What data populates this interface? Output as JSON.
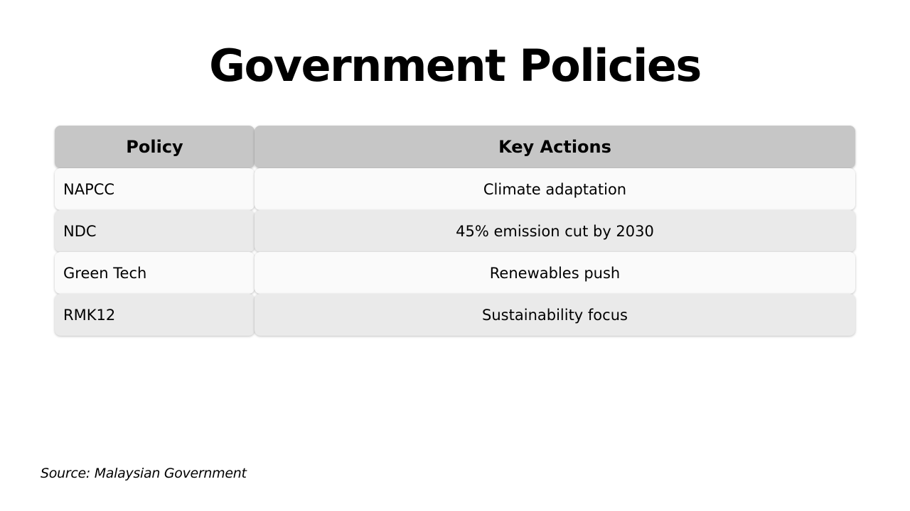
{
  "title": "Government Policies",
  "table": {
    "headers": [
      "Policy",
      "Key Actions"
    ],
    "rows": [
      [
        "NAPCC",
        "Climate adaptation"
      ],
      [
        "NDC",
        "45% emission cut by 2030"
      ],
      [
        "Green Tech",
        "Renewables push"
      ],
      [
        "RMK12",
        "Sustainability focus"
      ]
    ]
  },
  "source": "Source: Malaysian Government"
}
